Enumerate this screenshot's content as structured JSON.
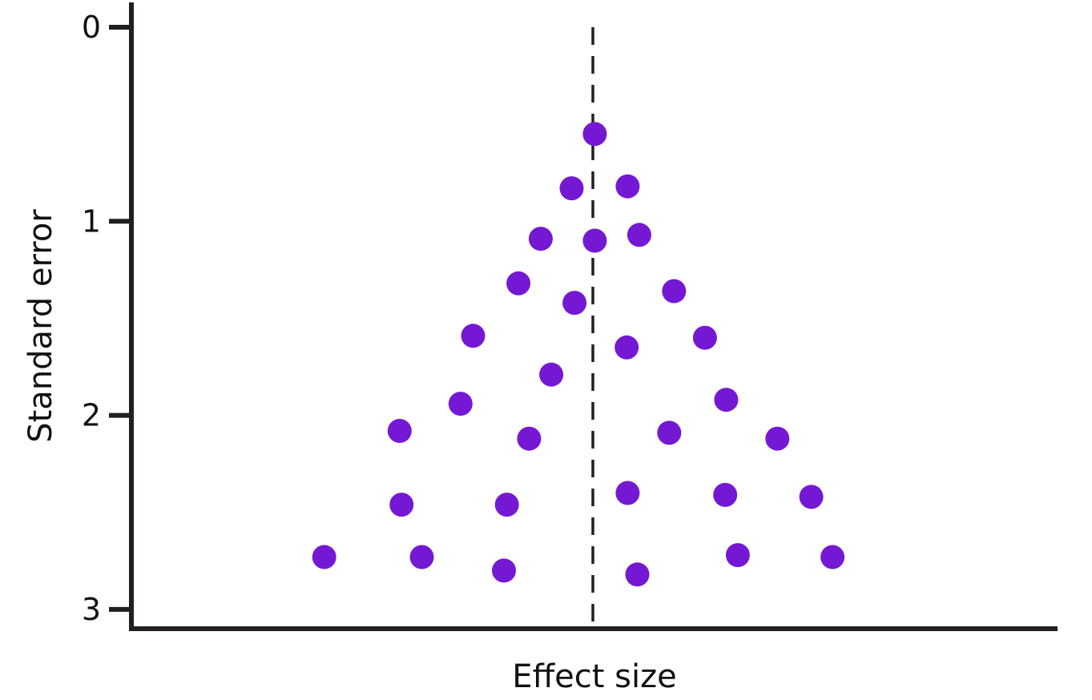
{
  "chart_data": {
    "type": "scatter",
    "title": "",
    "xlabel": "Effect size",
    "ylabel": "Standard error",
    "y_inverted": true,
    "ylim": [
      0,
      3.1
    ],
    "xlim": [
      -3.7,
      6
    ],
    "y_ticks": [
      0,
      1,
      2,
      3
    ],
    "y_tick_labels": [
      "0",
      "1",
      "2",
      "3"
    ],
    "reference_line_x": 0,
    "grid": false,
    "legend": "none",
    "point_color": "#7518d3",
    "axis_color": "#231f20",
    "points": [
      {
        "x": 0.02,
        "y": 0.55
      },
      {
        "x": -0.22,
        "y": 0.83
      },
      {
        "x": 0.36,
        "y": 0.82
      },
      {
        "x": -0.54,
        "y": 1.09
      },
      {
        "x": 0.02,
        "y": 1.1
      },
      {
        "x": 0.48,
        "y": 1.07
      },
      {
        "x": -0.77,
        "y": 1.32
      },
      {
        "x": -0.19,
        "y": 1.42
      },
      {
        "x": 0.84,
        "y": 1.36
      },
      {
        "x": -1.24,
        "y": 1.59
      },
      {
        "x": 0.35,
        "y": 1.65
      },
      {
        "x": 1.16,
        "y": 1.6
      },
      {
        "x": -0.43,
        "y": 1.79
      },
      {
        "x": -1.37,
        "y": 1.94
      },
      {
        "x": 1.38,
        "y": 1.92
      },
      {
        "x": -2.0,
        "y": 2.08
      },
      {
        "x": -0.66,
        "y": 2.12
      },
      {
        "x": 0.79,
        "y": 2.09
      },
      {
        "x": 1.91,
        "y": 2.12
      },
      {
        "x": -1.98,
        "y": 2.46
      },
      {
        "x": -0.89,
        "y": 2.46
      },
      {
        "x": 0.36,
        "y": 2.4
      },
      {
        "x": 1.37,
        "y": 2.41
      },
      {
        "x": 2.26,
        "y": 2.42
      },
      {
        "x": -2.78,
        "y": 2.73
      },
      {
        "x": -1.77,
        "y": 2.73
      },
      {
        "x": -0.92,
        "y": 2.8
      },
      {
        "x": 0.46,
        "y": 2.82
      },
      {
        "x": 1.5,
        "y": 2.72
      },
      {
        "x": 2.48,
        "y": 2.73
      }
    ]
  }
}
